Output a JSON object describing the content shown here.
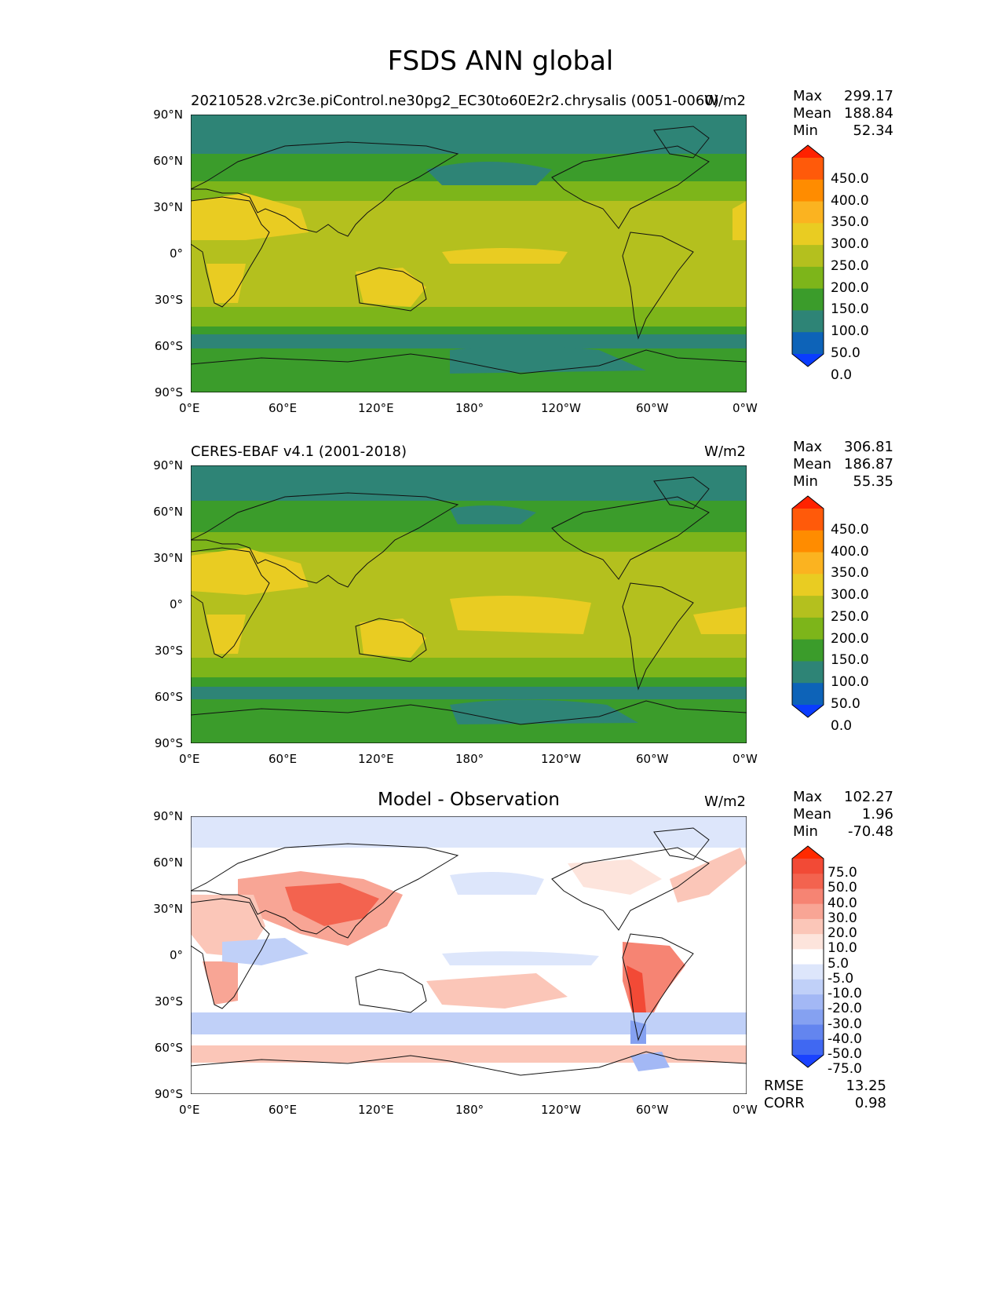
{
  "figure": {
    "title": "FSDS ANN global"
  },
  "axes": {
    "lat_labels": [
      "90°N",
      "60°N",
      "30°N",
      "0°",
      "30°S",
      "60°S",
      "90°S"
    ],
    "lon_labels": [
      "0°E",
      "60°E",
      "120°E",
      "180°",
      "120°W",
      "60°W",
      "0°W"
    ]
  },
  "panels": [
    {
      "left_title": "20210528.v2rc3e.piControl.ne30pg2_EC30to60E2r2.chrysalis (0051-0060)",
      "center_title": "",
      "units": "W/m2",
      "stats": {
        "Max": "299.17",
        "Mean": "188.84",
        "Min": "52.34"
      },
      "colorbar": {
        "labels": [
          "450.0",
          "400.0",
          "350.0",
          "300.0",
          "250.0",
          "200.0",
          "150.0",
          "100.0",
          "50.0",
          "0.0"
        ],
        "colors": [
          "#ff2200",
          "#ff5a0a",
          "#ff8c00",
          "#fbb320",
          "#e9cc22",
          "#b4c01e",
          "#7db51a",
          "#3b9c2b",
          "#2e8476",
          "#0d63b8",
          "#0a3cff"
        ]
      }
    },
    {
      "left_title": "CERES-EBAF v4.1 (2001-2018)",
      "center_title": "",
      "units": "W/m2",
      "stats": {
        "Max": "306.81",
        "Mean": "186.87",
        "Min": "55.35"
      },
      "colorbar": {
        "labels": [
          "450.0",
          "400.0",
          "350.0",
          "300.0",
          "250.0",
          "200.0",
          "150.0",
          "100.0",
          "50.0",
          "0.0"
        ],
        "colors": [
          "#ff2200",
          "#ff5a0a",
          "#ff8c00",
          "#fbb320",
          "#e9cc22",
          "#b4c01e",
          "#7db51a",
          "#3b9c2b",
          "#2e8476",
          "#0d63b8",
          "#0a3cff"
        ]
      }
    },
    {
      "left_title": "",
      "center_title": "Model - Observation",
      "units": "W/m2",
      "stats": {
        "Max": "102.27",
        "Mean": "1.96",
        "Min": "-70.48"
      },
      "colorbar": {
        "labels": [
          "75.0",
          "50.0",
          "40.0",
          "30.0",
          "20.0",
          "10.0",
          "5.0",
          "-5.0",
          "-10.0",
          "-20.0",
          "-30.0",
          "-40.0",
          "-50.0",
          "-75.0"
        ],
        "colors": [
          "#ff2a00",
          "#f24a36",
          "#f3634f",
          "#f68473",
          "#f8a595",
          "#fbc6b8",
          "#fde4dc",
          "#ffffff",
          "#dde6fb",
          "#c0d0f8",
          "#a3b8f5",
          "#85a1f1",
          "#6385ef",
          "#4068f2",
          "#1a42ff"
        ]
      },
      "metrics": {
        "RMSE": "13.25",
        "CORR": "0.98"
      }
    }
  ]
}
